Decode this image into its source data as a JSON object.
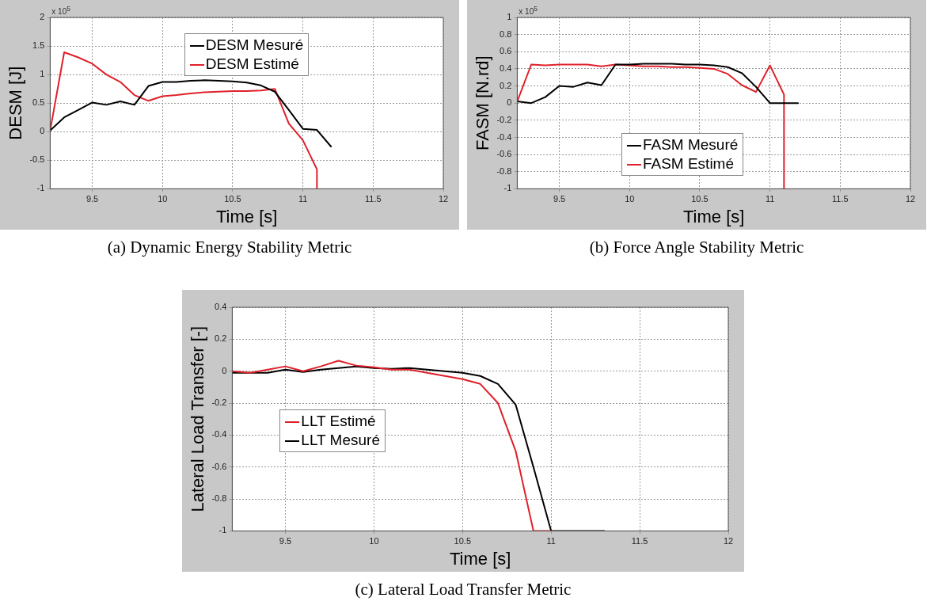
{
  "chart_data": [
    {
      "type": "line",
      "title": "(a) Dynamic Energy Stability Metric",
      "xlabel": "Time [s]",
      "ylabel": "DESM [J]",
      "annotations": [
        "x 10$^{5}$"
      ],
      "xlim": [
        9.2,
        12
      ],
      "xticks": [
        9.5,
        10,
        10.5,
        11,
        11.5,
        12
      ],
      "ylim": [
        -1,
        2
      ],
      "yticks": [
        -1,
        -0.5,
        0,
        0.5,
        1,
        1.5,
        2
      ],
      "grid": true,
      "legend": "top",
      "marker": "none",
      "line_style": "solid",
      "series": [
        {
          "name": "DESM Mesuré",
          "color": "#000000",
          "x": [
            9.2,
            9.3,
            9.4,
            9.5,
            9.6,
            9.7,
            9.8,
            9.9,
            10,
            10.1,
            10.2,
            10.3,
            10.4,
            10.5,
            10.6,
            10.7,
            10.8,
            10.9,
            11,
            11.1,
            11.2
          ],
          "values": [
            0.02,
            0.25,
            0.38,
            0.51,
            0.47,
            0.53,
            0.47,
            0.8,
            0.87,
            0.87,
            0.89,
            0.9,
            0.89,
            0.88,
            0.86,
            0.81,
            0.7,
            0.38,
            0.05,
            0.03,
            -0.26
          ]
        },
        {
          "name": "DESM Estimé",
          "color": "#e0202a",
          "x": [
            9.2,
            9.3,
            9.4,
            9.5,
            9.6,
            9.7,
            9.8,
            9.9,
            10,
            10.1,
            10.2,
            10.3,
            10.4,
            10.5,
            10.6,
            10.7,
            10.8,
            10.9,
            11,
            11.1,
            11.1
          ],
          "values": [
            0.02,
            1.39,
            1.3,
            1.19,
            1.0,
            0.87,
            0.64,
            0.54,
            0.62,
            0.64,
            0.67,
            0.69,
            0.7,
            0.71,
            0.71,
            0.72,
            0.75,
            0.14,
            -0.15,
            -0.66,
            -1
          ]
        }
      ]
    },
    {
      "type": "line",
      "title": "(b) Force Angle Stability Metric",
      "xlabel": "Time [s]",
      "ylabel": "FASM [N.rd]",
      "annotations": [
        "x 10$^{5}$"
      ],
      "xlim": [
        9.2,
        12
      ],
      "xticks": [
        9.5,
        10,
        10.5,
        11,
        11.5,
        12
      ],
      "ylim": [
        -1,
        1
      ],
      "yticks": [
        -1,
        -0.8,
        -0.6,
        -0.4,
        -0.2,
        0,
        0.2,
        0.4,
        0.6,
        0.8,
        1
      ],
      "grid": true,
      "legend": "bottom",
      "marker": "none",
      "line_style": "solid",
      "series": [
        {
          "name": "FASM Mesuré",
          "color": "#000000",
          "x": [
            9.2,
            9.3,
            9.4,
            9.5,
            9.6,
            9.7,
            9.8,
            9.9,
            10,
            10.1,
            10.2,
            10.3,
            10.4,
            10.5,
            10.6,
            10.7,
            10.8,
            10.9,
            11,
            11.1,
            11.2
          ],
          "values": [
            0.02,
            0.0,
            0.07,
            0.2,
            0.19,
            0.24,
            0.21,
            0.45,
            0.45,
            0.46,
            0.46,
            0.46,
            0.45,
            0.45,
            0.44,
            0.42,
            0.35,
            0.19,
            0,
            0,
            0
          ]
        },
        {
          "name": "FASM Estimé",
          "color": "#e0202a",
          "x": [
            9.2,
            9.3,
            9.4,
            9.5,
            9.6,
            9.7,
            9.8,
            9.9,
            10,
            10.1,
            10.2,
            10.3,
            10.4,
            10.5,
            10.6,
            10.7,
            10.8,
            10.9,
            11,
            11.1,
            11.1
          ],
          "values": [
            0.02,
            0.45,
            0.44,
            0.45,
            0.45,
            0.45,
            0.43,
            0.45,
            0.44,
            0.43,
            0.43,
            0.42,
            0.42,
            0.41,
            0.4,
            0.34,
            0.21,
            0.13,
            0.44,
            0.1,
            -1
          ]
        }
      ]
    },
    {
      "type": "line",
      "title": "(c) Lateral Load Transfer Metric",
      "xlabel": "Time [s]",
      "ylabel": "Lateral Load Transfer [-]",
      "xlim": [
        9.2,
        12
      ],
      "xticks": [
        9.5,
        10,
        10.5,
        11,
        11.5,
        12
      ],
      "ylim": [
        -1,
        0.4
      ],
      "yticks": [
        -1,
        -0.8,
        -0.6,
        -0.4,
        -0.2,
        0,
        0.2,
        0.4
      ],
      "grid": true,
      "legend": "left",
      "marker": "none",
      "line_style": "solid",
      "series": [
        {
          "name": "LLT Estimé",
          "color": "#e0202a",
          "x": [
            9.2,
            9.3,
            9.4,
            9.5,
            9.6,
            9.7,
            9.8,
            9.9,
            10,
            10.1,
            10.2,
            10.3,
            10.4,
            10.5,
            10.6,
            10.7,
            10.8,
            10.9,
            11
          ],
          "values": [
            0.0,
            -0.01,
            0.01,
            0.03,
            0.0,
            0.03,
            0.065,
            0.035,
            0.025,
            0.01,
            0.01,
            -0.01,
            -0.03,
            -0.05,
            -0.08,
            -0.2,
            -0.5,
            -1.0,
            -1.0
          ]
        },
        {
          "name": "LLT Mesuré",
          "color": "#000000",
          "x": [
            9.2,
            9.3,
            9.4,
            9.5,
            9.6,
            9.7,
            9.8,
            9.9,
            10,
            10.1,
            10.2,
            10.3,
            10.4,
            10.5,
            10.6,
            10.7,
            10.8,
            10.9,
            11,
            11.1,
            11.2,
            11.3
          ],
          "values": [
            -0.01,
            -0.01,
            -0.01,
            0.01,
            -0.005,
            0.01,
            0.02,
            0.03,
            0.02,
            0.015,
            0.02,
            0.01,
            0.0,
            -0.01,
            -0.03,
            -0.08,
            -0.21,
            -0.6,
            -1.0,
            -1.0,
            -1.0,
            -1.0
          ]
        }
      ]
    }
  ]
}
